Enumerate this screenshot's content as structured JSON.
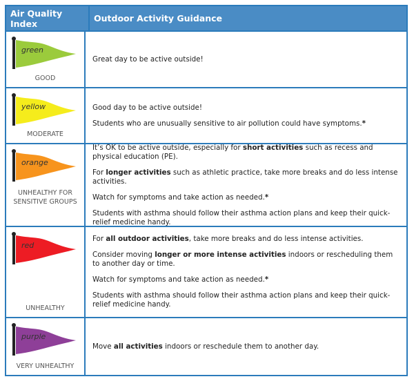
{
  "header": {
    "col1": "Air Quality Index",
    "col2": "Outdoor Activity Guidance"
  },
  "rows": [
    {
      "flag": "green",
      "color": "#9bcb3c",
      "level": "GOOD",
      "height": 80,
      "paras": [
        [
          {
            "t": "Great day to be active outside!"
          }
        ]
      ]
    },
    {
      "flag": "yellow",
      "color": "#f5ec1c",
      "level": "MODERATE",
      "height": 79,
      "paras": [
        [
          {
            "t": "Good day to be active outside!"
          }
        ],
        [
          {
            "t": "Students who are unusually sensitive to air pollution could have symptoms."
          },
          {
            "t": "*",
            "b": true
          }
        ]
      ]
    },
    {
      "flag": "orange",
      "color": "#f7941d",
      "level": "UNHEALTHY FOR SENSITIVE GROUPS",
      "height": 118,
      "paras": [
        [
          {
            "t": "It’s OK to be active outside, especially for "
          },
          {
            "t": "short activities",
            "b": true
          },
          {
            "t": " such as recess and physical education (PE)."
          }
        ],
        [
          {
            "t": "For "
          },
          {
            "t": "longer activities",
            "b": true
          },
          {
            "t": " such as athletic practice, take more breaks and do less intense activities."
          }
        ],
        [
          {
            "t": "Watch for symptoms and take action as needed."
          },
          {
            "t": "*",
            "b": true
          }
        ],
        [
          {
            "t": "Students with asthma should follow their asthma action plans and keep their quick-relief medicine handy."
          }
        ]
      ]
    },
    {
      "flag": "red",
      "color": "#ed1c24",
      "level": "UNHEALTHY",
      "height": 130,
      "paras": [
        [
          {
            "t": "For "
          },
          {
            "t": "all outdoor activities",
            "b": true
          },
          {
            "t": ", take more breaks and do less intense activities."
          }
        ],
        [
          {
            "t": "Consider moving "
          },
          {
            "t": "longer or more intense activities",
            "b": true
          },
          {
            "t": " indoors or rescheduling them to another day or time."
          }
        ],
        [
          {
            "t": "Watch for symptoms and take action as needed."
          },
          {
            "t": "*",
            "b": true
          }
        ],
        [
          {
            "t": "Students with asthma should follow their asthma action plans and keep their quick-relief medicine handy."
          }
        ]
      ]
    },
    {
      "flag": "purple",
      "color": "#8e3f98",
      "level": "VERY UNHEALTHY",
      "height": 82,
      "paras": [
        [
          {
            "t": "Move "
          },
          {
            "t": "all activities",
            "b": true
          },
          {
            "t": " indoors or reschedule them to another day."
          }
        ]
      ]
    }
  ]
}
